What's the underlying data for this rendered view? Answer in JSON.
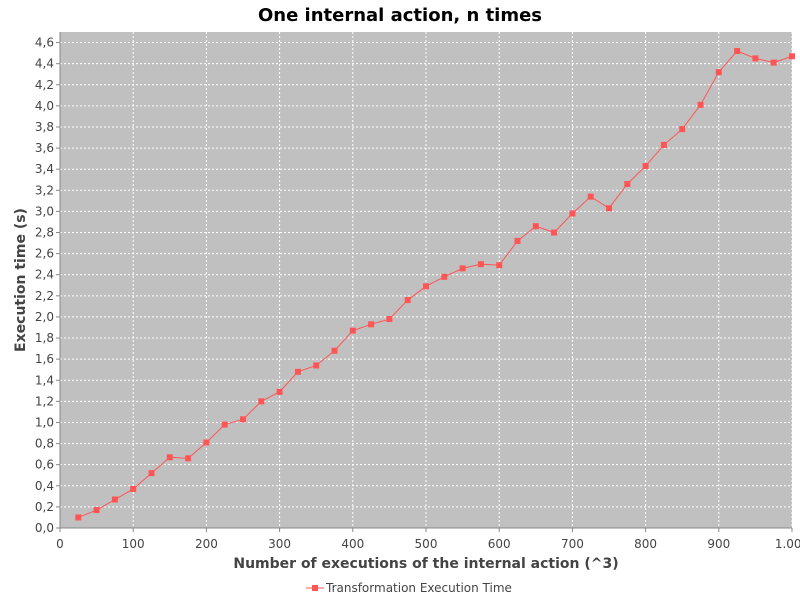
{
  "chart_data": {
    "type": "line",
    "title": "One internal action, n times",
    "xlabel": "Number of executions of the internal action (^3)",
    "ylabel": "Execution time (s)",
    "xlim": [
      0,
      1000
    ],
    "ylim": [
      0,
      4.7
    ],
    "grid": true,
    "legend_position": "bottom-center",
    "x_ticks": [
      "0",
      "100",
      "200",
      "300",
      "400",
      "500",
      "600",
      "700",
      "800",
      "900",
      "1.000"
    ],
    "y_ticks": [
      "0,0",
      "0,2",
      "0,4",
      "0,6",
      "0,8",
      "1,0",
      "1,2",
      "1,4",
      "1,6",
      "1,8",
      "2,0",
      "2,2",
      "2,4",
      "2,6",
      "2,8",
      "3,0",
      "3,2",
      "3,4",
      "3,6",
      "3,8",
      "4,0",
      "4,2",
      "4,4",
      "4,6"
    ],
    "colors": {
      "plot_background": "#c0c0c0",
      "gridline": "#ffffff",
      "series": "#ff5555"
    },
    "series": [
      {
        "name": "Transformation Execution Time",
        "x": [
          25,
          50,
          75,
          100,
          125,
          150,
          175,
          200,
          225,
          250,
          275,
          300,
          325,
          350,
          375,
          400,
          425,
          450,
          475,
          500,
          525,
          550,
          575,
          600,
          625,
          650,
          675,
          700,
          725,
          750,
          775,
          800,
          825,
          850,
          875,
          900,
          925,
          950,
          975,
          1000
        ],
        "y": [
          0.1,
          0.17,
          0.27,
          0.37,
          0.52,
          0.67,
          0.66,
          0.81,
          0.98,
          1.03,
          1.2,
          1.29,
          1.48,
          1.54,
          1.68,
          1.87,
          1.93,
          1.98,
          2.16,
          2.29,
          2.38,
          2.46,
          2.5,
          2.49,
          2.72,
          2.86,
          2.8,
          2.98,
          3.14,
          3.03,
          3.26,
          3.43,
          3.63,
          3.78,
          4.01,
          4.32,
          4.52,
          4.45,
          4.41,
          4.47
        ]
      }
    ]
  }
}
